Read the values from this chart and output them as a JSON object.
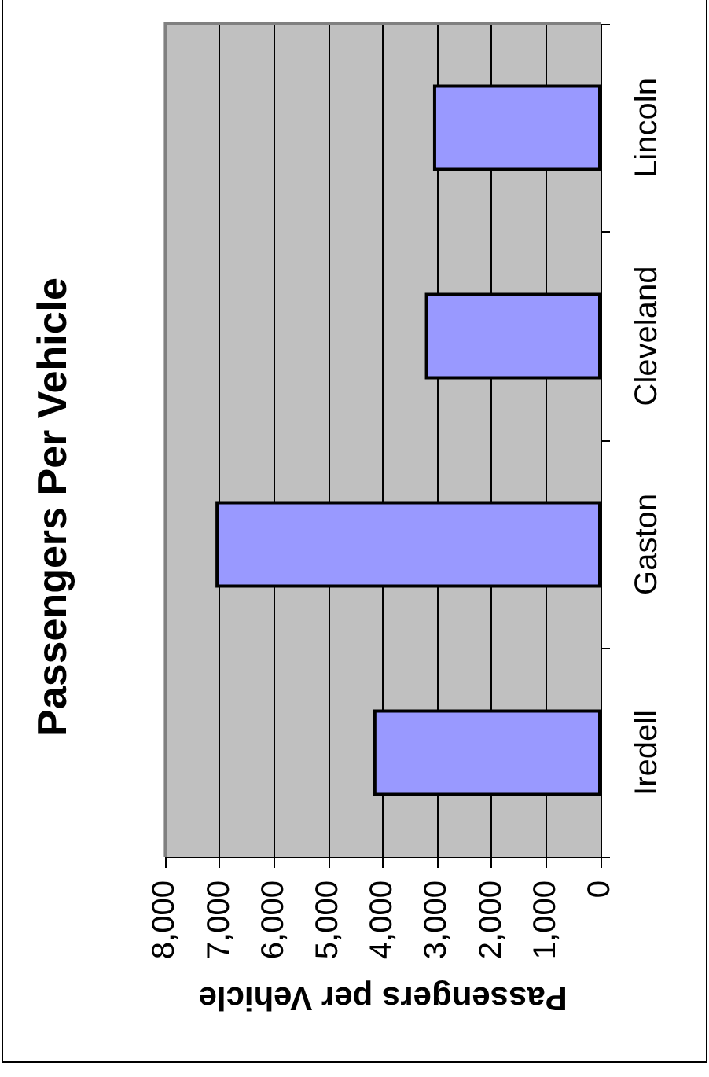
{
  "chart_data": {
    "type": "bar",
    "orientation": "horizontal",
    "title": "Passengers Per Vehicle",
    "xlabel": "Passengers per Vehicle",
    "categories": [
      "Lincoln",
      "Cleveland",
      "Gaston",
      "Iredell"
    ],
    "values": [
      3050,
      3200,
      7050,
      4150
    ],
    "color": "#9999ff",
    "xlim": [
      8000,
      0
    ],
    "xticks": [
      {
        "value": 8000,
        "label": "8,000"
      },
      {
        "value": 7000,
        "label": "7,000"
      },
      {
        "value": 6000,
        "label": "6,000"
      },
      {
        "value": 5000,
        "label": "5,000"
      },
      {
        "value": 4000,
        "label": "4,000"
      },
      {
        "value": 3000,
        "label": "3,000"
      },
      {
        "value": 2000,
        "label": "2,000"
      },
      {
        "value": 1000,
        "label": "1,000"
      },
      0
    ],
    "grid": "x"
  }
}
